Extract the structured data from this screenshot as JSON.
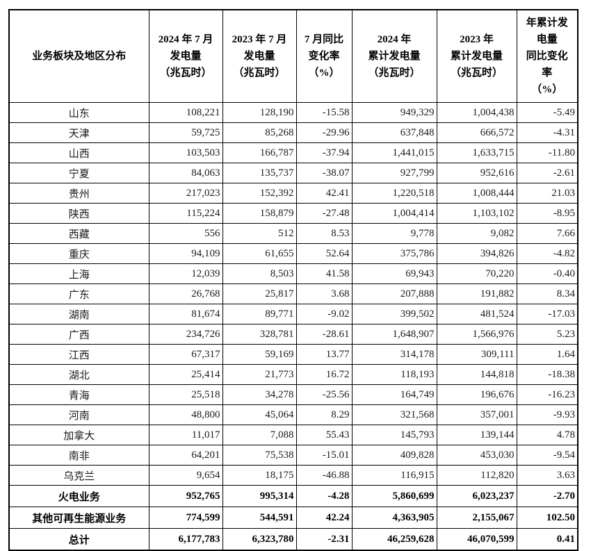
{
  "table": {
    "headers": [
      "业务板块及地区分布",
      "2024 年 7 月\n发电量\n（兆瓦时）",
      "2023 年 7 月\n发电量\n（兆瓦时）",
      "7 月同比\n变化率\n（%）",
      "2024 年\n累计发电量\n（兆瓦时）",
      "2023 年\n累计发电量\n（兆瓦时）",
      "年累计发\n电量\n同比变化\n率\n（%）"
    ],
    "rows": [
      {
        "region": "山东",
        "bold": false,
        "values": [
          "108,221",
          "128,190",
          "-15.58",
          "949,329",
          "1,004,438",
          "-5.49"
        ]
      },
      {
        "region": "天津",
        "bold": false,
        "values": [
          "59,725",
          "85,268",
          "-29.96",
          "637,848",
          "666,572",
          "-4.31"
        ]
      },
      {
        "region": "山西",
        "bold": false,
        "values": [
          "103,503",
          "166,787",
          "-37.94",
          "1,441,015",
          "1,633,715",
          "-11.80"
        ]
      },
      {
        "region": "宁夏",
        "bold": false,
        "values": [
          "84,063",
          "135,737",
          "-38.07",
          "927,799",
          "952,616",
          "-2.61"
        ]
      },
      {
        "region": "贵州",
        "bold": false,
        "values": [
          "217,023",
          "152,392",
          "42.41",
          "1,220,518",
          "1,008,444",
          "21.03"
        ]
      },
      {
        "region": "陕西",
        "bold": false,
        "values": [
          "115,224",
          "158,879",
          "-27.48",
          "1,004,414",
          "1,103,102",
          "-8.95"
        ]
      },
      {
        "region": "西藏",
        "bold": false,
        "values": [
          "556",
          "512",
          "8.53",
          "9,778",
          "9,082",
          "7.66"
        ]
      },
      {
        "region": "重庆",
        "bold": false,
        "values": [
          "94,109",
          "61,655",
          "52.64",
          "375,786",
          "394,826",
          "-4.82"
        ]
      },
      {
        "region": "上海",
        "bold": false,
        "values": [
          "12,039",
          "8,503",
          "41.58",
          "69,943",
          "70,220",
          "-0.40"
        ]
      },
      {
        "region": "广东",
        "bold": false,
        "values": [
          "26,768",
          "25,817",
          "3.68",
          "207,888",
          "191,882",
          "8.34"
        ]
      },
      {
        "region": "湖南",
        "bold": false,
        "values": [
          "81,674",
          "89,771",
          "-9.02",
          "399,502",
          "481,524",
          "-17.03"
        ]
      },
      {
        "region": "广西",
        "bold": false,
        "values": [
          "234,726",
          "328,781",
          "-28.61",
          "1,648,907",
          "1,566,976",
          "5.23"
        ]
      },
      {
        "region": "江西",
        "bold": false,
        "values": [
          "67,317",
          "59,169",
          "13.77",
          "314,178",
          "309,111",
          "1.64"
        ]
      },
      {
        "region": "湖北",
        "bold": false,
        "values": [
          "25,414",
          "21,773",
          "16.72",
          "118,193",
          "144,818",
          "-18.38"
        ]
      },
      {
        "region": "青海",
        "bold": false,
        "values": [
          "25,518",
          "34,278",
          "-25.56",
          "164,749",
          "196,676",
          "-16.23"
        ]
      },
      {
        "region": "河南",
        "bold": false,
        "values": [
          "48,800",
          "45,064",
          "8.29",
          "321,568",
          "357,001",
          "-9.93"
        ]
      },
      {
        "region": "加拿大",
        "bold": false,
        "values": [
          "11,017",
          "7,088",
          "55.43",
          "145,793",
          "139,144",
          "4.78"
        ]
      },
      {
        "region": "南非",
        "bold": false,
        "values": [
          "64,201",
          "75,538",
          "-15.01",
          "409,828",
          "453,030",
          "-9.54"
        ]
      },
      {
        "region": "乌克兰",
        "bold": false,
        "values": [
          "9,654",
          "18,175",
          "-46.88",
          "116,915",
          "112,820",
          "3.63"
        ]
      },
      {
        "region": "火电业务",
        "bold": true,
        "values": [
          "952,765",
          "995,314",
          "-4.28",
          "5,860,699",
          "6,023,237",
          "-2.70"
        ]
      },
      {
        "region": "其他可再生能源业务",
        "bold": true,
        "values": [
          "774,599",
          "544,591",
          "42.24",
          "4,363,905",
          "2,155,067",
          "102.50"
        ]
      },
      {
        "region": "总计",
        "bold": true,
        "values": [
          "6,177,783",
          "6,323,780",
          "-2.31",
          "46,259,628",
          "46,070,599",
          "0.41"
        ]
      }
    ]
  }
}
